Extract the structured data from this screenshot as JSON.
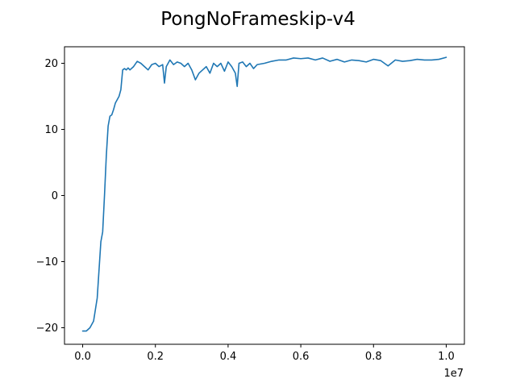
{
  "chart_data": {
    "type": "line",
    "title": "PongNoFrameskip-v4",
    "xlabel": "",
    "ylabel": "",
    "x_offset_text": "1e7",
    "x_ticks": [
      0.0,
      0.2,
      0.4,
      0.6,
      0.8,
      1.0
    ],
    "x_tick_labels": [
      "0.0",
      "0.2",
      "0.4",
      "0.6",
      "0.8",
      "1.0"
    ],
    "y_ticks": [
      -20,
      -10,
      0,
      10,
      20
    ],
    "y_tick_labels": [
      "−20",
      "−10",
      "0",
      "10",
      "20"
    ],
    "xlim": [
      -0.05,
      1.05
    ],
    "ylim": [
      -22.5,
      22.5
    ],
    "grid": false,
    "colors": {
      "line": "#1f77b4",
      "axis": "#000000",
      "background": "#ffffff"
    },
    "series": [
      {
        "x": [
          0.0,
          0.01,
          0.02,
          0.03,
          0.04,
          0.05,
          0.055,
          0.06,
          0.065,
          0.07,
          0.075,
          0.08,
          0.085,
          0.09,
          0.095,
          0.1,
          0.105,
          0.11,
          0.115,
          0.12,
          0.125,
          0.13,
          0.14,
          0.15,
          0.16,
          0.17,
          0.18,
          0.19,
          0.2,
          0.21,
          0.22,
          0.225,
          0.23,
          0.24,
          0.25,
          0.26,
          0.27,
          0.28,
          0.29,
          0.3,
          0.31,
          0.32,
          0.33,
          0.34,
          0.35,
          0.36,
          0.37,
          0.38,
          0.39,
          0.4,
          0.41,
          0.42,
          0.425,
          0.43,
          0.44,
          0.45,
          0.46,
          0.47,
          0.48,
          0.5,
          0.52,
          0.54,
          0.56,
          0.58,
          0.6,
          0.62,
          0.64,
          0.66,
          0.68,
          0.7,
          0.72,
          0.74,
          0.76,
          0.78,
          0.8,
          0.82,
          0.84,
          0.86,
          0.88,
          0.9,
          0.92,
          0.94,
          0.96,
          0.98,
          1.0
        ],
        "y": [
          -20.5,
          -20.5,
          -20.0,
          -19.0,
          -15.5,
          -7.0,
          -5.5,
          0.0,
          6.0,
          10.5,
          12.0,
          12.2,
          13.0,
          14.0,
          14.5,
          15.0,
          16.0,
          19.0,
          19.2,
          19.0,
          19.3,
          19.0,
          19.5,
          20.3,
          20.0,
          19.5,
          19.0,
          19.8,
          20.0,
          19.5,
          19.8,
          17.0,
          19.5,
          20.5,
          19.8,
          20.2,
          20.0,
          19.5,
          20.0,
          19.0,
          17.5,
          18.5,
          19.0,
          19.5,
          18.5,
          20.0,
          19.5,
          20.0,
          18.8,
          20.2,
          19.5,
          18.5,
          16.5,
          20.0,
          20.2,
          19.5,
          20.0,
          19.2,
          19.8,
          20.0,
          20.3,
          20.5,
          20.5,
          20.8,
          20.7,
          20.8,
          20.5,
          20.8,
          20.3,
          20.6,
          20.2,
          20.5,
          20.4,
          20.2,
          20.6,
          20.4,
          19.6,
          20.5,
          20.3,
          20.4,
          20.6,
          20.5,
          20.5,
          20.6,
          20.9
        ]
      }
    ]
  }
}
